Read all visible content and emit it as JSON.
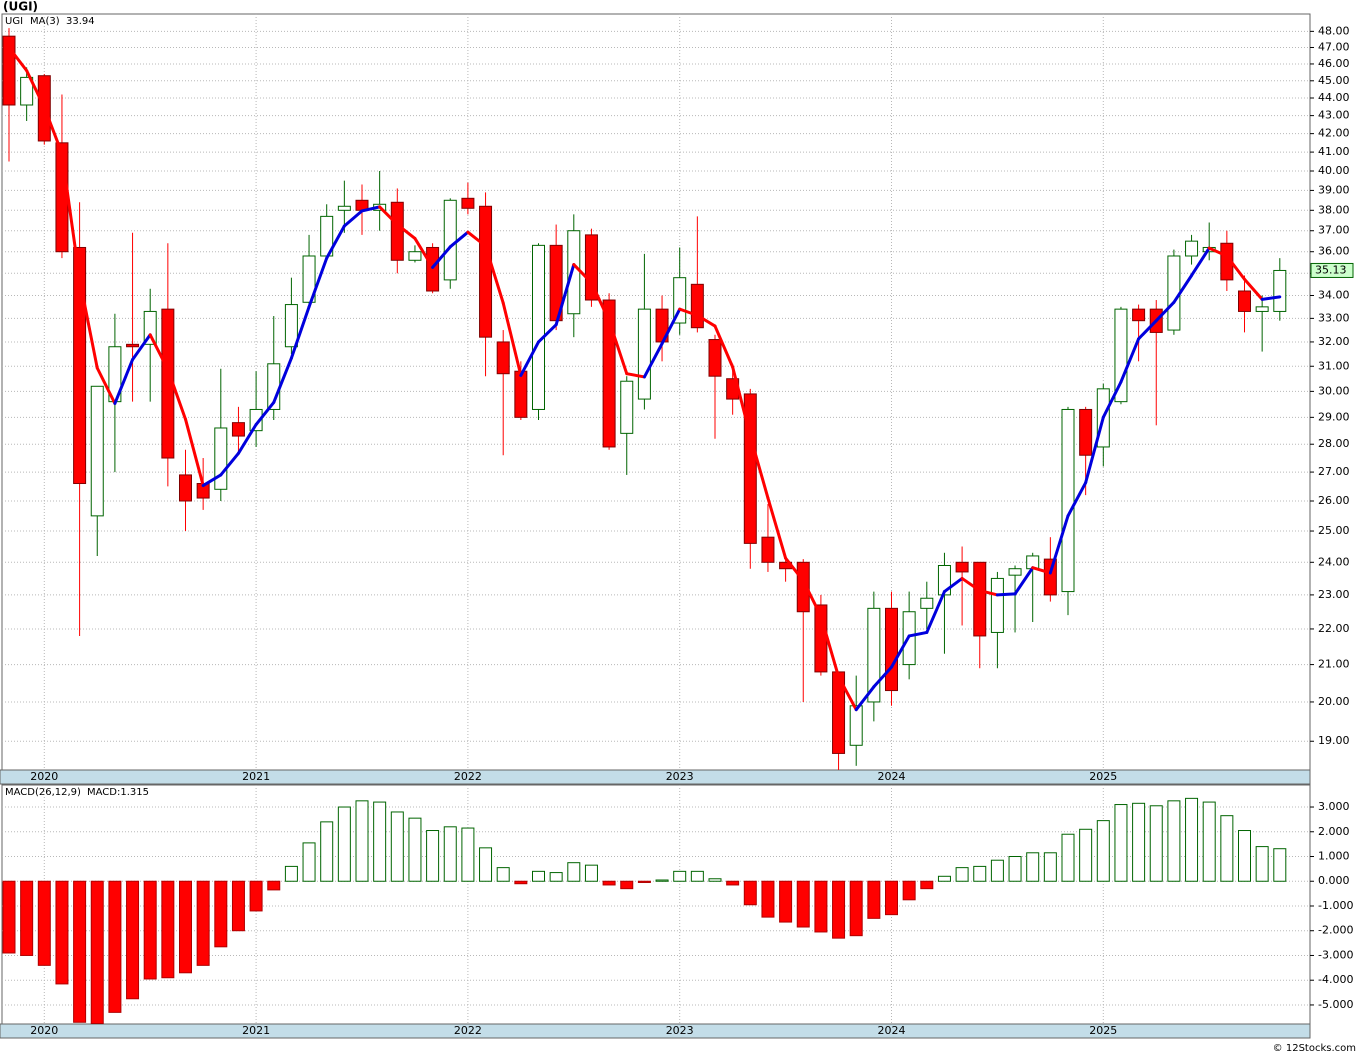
{
  "chart_data": [
    {
      "type": "candlestick",
      "title": "(UGI)",
      "symbol": "UGI",
      "log": true,
      "grid": true,
      "categories": [
        null,
        null,
        "2020",
        null,
        null,
        null,
        null,
        null,
        null,
        null,
        null,
        null,
        null,
        null,
        "2021",
        null,
        null,
        null,
        null,
        null,
        null,
        null,
        null,
        null,
        null,
        null,
        "2022",
        null,
        null,
        null,
        null,
        null,
        null,
        null,
        null,
        null,
        null,
        null,
        "2023",
        null,
        null,
        null,
        null,
        null,
        null,
        null,
        null,
        null,
        null,
        null,
        "2024",
        null,
        null,
        null,
        null,
        null,
        null,
        null,
        null,
        null,
        null,
        null,
        "2025",
        null,
        null,
        null,
        null,
        null,
        null,
        null,
        null,
        null,
        null
      ],
      "open": [
        47.7,
        43.6,
        45.3,
        41.5,
        36.2,
        25.5,
        29.6,
        31.9,
        31.9,
        33.4,
        26.9,
        26.6,
        26.4,
        28.8,
        28.5,
        29.3,
        31.8,
        33.7,
        35.8,
        38.0,
        38.5,
        38.0,
        38.4,
        35.6,
        36.2,
        34.7,
        38.6,
        38.2,
        32.0,
        30.8,
        29.3,
        36.3,
        33.2,
        36.8,
        33.8,
        28.4,
        29.7,
        33.4,
        32.8,
        34.5,
        32.1,
        30.5,
        29.9,
        24.8,
        24.0,
        24.0,
        22.7,
        20.8,
        18.9,
        20.0,
        22.6,
        21.0,
        22.6,
        23.0,
        24.0,
        24.0,
        21.9,
        23.6,
        23.8,
        24.1,
        23.1,
        29.3,
        27.9,
        29.6,
        33.4,
        33.4,
        32.5,
        35.8,
        36.0,
        36.4,
        34.2,
        33.3,
        33.3
      ],
      "high": [
        48.2,
        45.8,
        45.4,
        44.2,
        38.4,
        30.2,
        33.2,
        36.9,
        34.3,
        36.4,
        27.8,
        27.5,
        30.9,
        29.4,
        30.8,
        33.1,
        34.8,
        36.8,
        38.3,
        39.5,
        39.3,
        40.0,
        39.1,
        36.3,
        36.4,
        38.6,
        39.4,
        38.9,
        32.5,
        31.2,
        36.4,
        37.3,
        37.8,
        37.1,
        34.1,
        30.6,
        35.9,
        34.0,
        36.2,
        37.7,
        32.3,
        31.1,
        30.1,
        25.9,
        24.1,
        24.1,
        23.0,
        20.8,
        20.7,
        23.1,
        23.1,
        23.1,
        23.4,
        24.3,
        24.5,
        24.0,
        23.7,
        23.9,
        24.3,
        24.8,
        29.4,
        29.4,
        30.3,
        33.5,
        33.6,
        33.8,
        36.1,
        36.8,
        37.4,
        37.0,
        34.9,
        34.0,
        35.7
      ],
      "low": [
        40.5,
        42.7,
        41.4,
        35.7,
        21.8,
        24.2,
        27.0,
        29.6,
        29.6,
        26.5,
        25.0,
        25.7,
        26.0,
        27.6,
        27.9,
        28.9,
        31.5,
        33.5,
        35.6,
        36.9,
        36.8,
        37.0,
        35.0,
        35.5,
        34.1,
        34.3,
        37.8,
        30.6,
        27.6,
        28.9,
        28.9,
        32.5,
        32.2,
        33.5,
        27.8,
        26.9,
        29.3,
        31.2,
        32.3,
        32.4,
        28.2,
        29.1,
        23.8,
        23.7,
        23.4,
        20.0,
        20.7,
        18.3,
        18.4,
        19.5,
        19.9,
        20.6,
        22.0,
        21.3,
        22.1,
        20.9,
        20.9,
        21.9,
        22.2,
        22.8,
        22.4,
        26.2,
        27.2,
        29.5,
        31.2,
        28.7,
        32.3,
        35.4,
        35.6,
        34.2,
        32.4,
        31.6,
        32.9
      ],
      "close": [
        43.6,
        45.2,
        41.6,
        36.0,
        26.6,
        30.2,
        31.8,
        31.8,
        33.3,
        27.5,
        26.0,
        26.1,
        28.6,
        28.3,
        29.3,
        31.1,
        33.6,
        35.8,
        37.7,
        38.2,
        38.0,
        38.3,
        35.6,
        36.0,
        34.2,
        38.5,
        38.1,
        32.2,
        30.7,
        29.0,
        36.3,
        32.9,
        37.0,
        33.8,
        27.9,
        30.4,
        33.4,
        32.0,
        34.8,
        32.6,
        30.6,
        29.7,
        24.6,
        24.0,
        23.8,
        22.5,
        20.8,
        18.7,
        19.9,
        22.6,
        20.3,
        22.5,
        22.9,
        23.9,
        23.7,
        21.8,
        23.5,
        23.8,
        24.2,
        23.0,
        29.3,
        27.6,
        30.1,
        33.4,
        32.9,
        32.4,
        35.8,
        36.5,
        36.2,
        34.7,
        33.3,
        33.5,
        35.13
      ],
      "ma": {
        "name": "MA(3)",
        "rising_color": "#0000dd",
        "falling_color": "#ff0000",
        "values": [
          47.0,
          45.6,
          43.47,
          40.93,
          34.73,
          30.93,
          29.53,
          31.27,
          32.3,
          30.87,
          28.93,
          26.53,
          26.9,
          27.67,
          28.73,
          29.57,
          31.33,
          33.5,
          35.7,
          37.23,
          37.97,
          38.17,
          37.3,
          36.63,
          35.27,
          36.23,
          36.93,
          36.27,
          33.67,
          30.63,
          32.0,
          32.73,
          35.4,
          34.57,
          32.9,
          30.7,
          30.57,
          31.93,
          33.4,
          33.13,
          32.67,
          30.97,
          28.3,
          26.1,
          24.13,
          23.43,
          22.37,
          20.67,
          19.8,
          20.4,
          20.93,
          21.8,
          21.9,
          23.1,
          23.5,
          23.13,
          23.0,
          23.03,
          23.83,
          23.67,
          25.5,
          26.63,
          29.0,
          30.37,
          32.13,
          32.9,
          33.7,
          34.9,
          36.17,
          35.8,
          34.73,
          33.83,
          33.94
        ]
      },
      "up_color": "#006400",
      "down_color": "#ff0000",
      "ylim": [
        18.3,
        49.1
      ],
      "yticks": [
        {
          "value": 19,
          "label": "19.00"
        },
        {
          "value": 20,
          "label": "20.00"
        },
        {
          "value": 21,
          "label": "21.00"
        },
        {
          "value": 22,
          "label": "22.00"
        },
        {
          "value": 23,
          "label": "23.00"
        },
        {
          "value": 24,
          "label": "24.00"
        },
        {
          "value": 25,
          "label": "25.00"
        },
        {
          "value": 26,
          "label": "26.00"
        },
        {
          "value": 27,
          "label": "27.00"
        },
        {
          "value": 28,
          "label": "28.00"
        },
        {
          "value": 29,
          "label": "29.00"
        },
        {
          "value": 30,
          "label": "30.00"
        },
        {
          "value": 31,
          "label": "31.00"
        },
        {
          "value": 32,
          "label": "32.00"
        },
        {
          "value": 33,
          "label": "33.00"
        },
        {
          "value": 34,
          "label": "34.00"
        },
        {
          "value": 35,
          "label": "35.00"
        },
        {
          "value": 36,
          "label": "36.00"
        },
        {
          "value": 37,
          "label": "37.00"
        },
        {
          "value": 38,
          "label": "38.00"
        },
        {
          "value": 39,
          "label": "39.00"
        },
        {
          "value": 40,
          "label": "40.00"
        },
        {
          "value": 41,
          "label": "41.00"
        },
        {
          "value": 42,
          "label": "42.00"
        },
        {
          "value": 43,
          "label": "43.00"
        },
        {
          "value": 44,
          "label": "44.00"
        },
        {
          "value": 45,
          "label": "45.00"
        },
        {
          "value": 46,
          "label": "46.00"
        },
        {
          "value": 47,
          "label": "47.00"
        },
        {
          "value": 48,
          "label": "48.00"
        }
      ]
    },
    {
      "type": "bar",
      "title": "MACD(26,12,9)",
      "value_title": "MACD:1.315",
      "grid": true,
      "pos_color": "#006400",
      "neg_color": "#ff0000",
      "values": [
        -2.9,
        -3.0,
        -3.4,
        -4.15,
        -5.7,
        -5.75,
        -5.3,
        -4.75,
        -3.95,
        -3.9,
        -3.7,
        -3.4,
        -2.65,
        -2.0,
        -1.2,
        -0.35,
        0.6,
        1.55,
        2.4,
        3.0,
        3.25,
        3.2,
        2.8,
        2.55,
        2.05,
        2.2,
        2.15,
        1.35,
        0.55,
        -0.1,
        0.4,
        0.35,
        0.75,
        0.65,
        -0.15,
        -0.3,
        -0.05,
        0.05,
        0.4,
        0.4,
        0.1,
        -0.15,
        -0.95,
        -1.45,
        -1.65,
        -1.85,
        -2.05,
        -2.3,
        -2.2,
        -1.5,
        -1.35,
        -0.75,
        -0.3,
        0.2,
        0.55,
        0.6,
        0.85,
        1.0,
        1.15,
        1.15,
        1.9,
        2.1,
        2.45,
        3.1,
        3.15,
        3.05,
        3.25,
        3.35,
        3.2,
        2.65,
        2.05,
        1.4,
        1.315
      ],
      "ylim": [
        -5.77,
        3.89
      ],
      "yticks": [
        {
          "value": 3,
          "label": "3.000"
        },
        {
          "value": 2,
          "label": "2.000"
        },
        {
          "value": 1,
          "label": "1.000"
        },
        {
          "value": 0,
          "label": "0.000"
        },
        {
          "value": -1,
          "label": "-1.000"
        },
        {
          "value": -2,
          "label": "-2.000"
        },
        {
          "value": -3,
          "label": "-3.000"
        },
        {
          "value": -4,
          "label": "-4.000"
        },
        {
          "value": -5,
          "label": "-5.000"
        }
      ]
    }
  ],
  "footer": "© 12Stocks.com"
}
